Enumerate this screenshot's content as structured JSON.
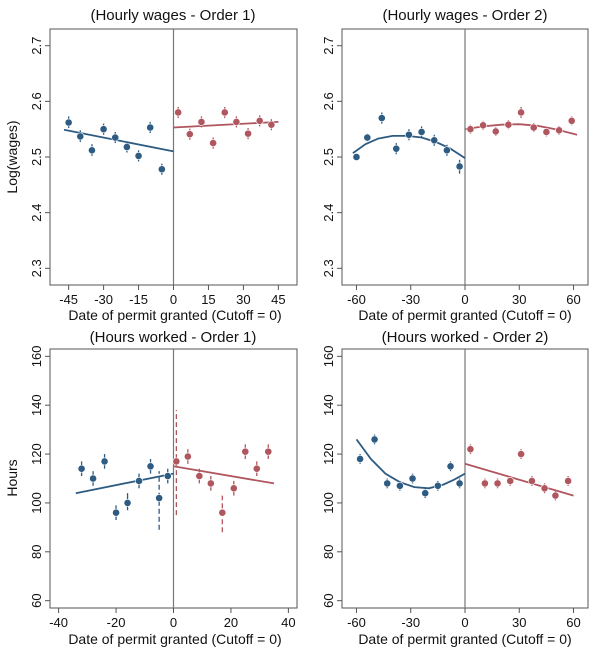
{
  "colors": {
    "left": "#2e5b82",
    "right": "#b0565f",
    "cutoff": "#777777",
    "axis": "#555555"
  },
  "chart_data": [
    {
      "type": "scatter",
      "title": "(Hourly wages - Order 1)",
      "xlabel": "Date of permit granted (Cutoff = 0)",
      "ylabel": "Log(wages)",
      "xlim": [
        -53,
        53
      ],
      "ylim": [
        2.27,
        2.73
      ],
      "xticks": [
        -45,
        -30,
        -15,
        0,
        15,
        30,
        45
      ],
      "xtick_labels": [
        "-45",
        "-30",
        "-15",
        "0",
        "15",
        "30",
        "45"
      ],
      "yticks": [
        2.3,
        2.4,
        2.5,
        2.6,
        2.7
      ],
      "ytick_labels": [
        "2.3",
        "2.4",
        "2.5",
        "2.6",
        "2.7"
      ],
      "cutoff": 0,
      "series": [
        {
          "side": "left",
          "points": [
            {
              "x": -45,
              "y": 2.562,
              "ci": [
                2.552,
                2.573
              ]
            },
            {
              "x": -40,
              "y": 2.537,
              "ci": [
                2.527,
                2.548
              ]
            },
            {
              "x": -35,
              "y": 2.512,
              "ci": [
                2.502,
                2.523
              ]
            },
            {
              "x": -30,
              "y": 2.55,
              "ci": [
                2.54,
                2.56
              ]
            },
            {
              "x": -25,
              "y": 2.535,
              "ci": [
                2.525,
                2.545
              ]
            },
            {
              "x": -20,
              "y": 2.518,
              "ci": [
                2.508,
                2.528
              ]
            },
            {
              "x": -15,
              "y": 2.502,
              "ci": [
                2.492,
                2.512
              ]
            },
            {
              "x": -10,
              "y": 2.553,
              "ci": [
                2.543,
                2.563
              ]
            },
            {
              "x": -5,
              "y": 2.478,
              "ci": [
                2.468,
                2.488
              ]
            }
          ],
          "fit": [
            [
              -47,
              2.549
            ],
            [
              0,
              2.51
            ]
          ]
        },
        {
          "side": "right",
          "points": [
            {
              "x": 2,
              "y": 2.58,
              "ci": [
                2.57,
                2.59
              ]
            },
            {
              "x": 7,
              "y": 2.541,
              "ci": [
                2.531,
                2.551
              ]
            },
            {
              "x": 12,
              "y": 2.563,
              "ci": [
                2.553,
                2.573
              ]
            },
            {
              "x": 17,
              "y": 2.525,
              "ci": [
                2.515,
                2.535
              ]
            },
            {
              "x": 22,
              "y": 2.58,
              "ci": [
                2.57,
                2.59
              ]
            },
            {
              "x": 27,
              "y": 2.563,
              "ci": [
                2.553,
                2.573
              ]
            },
            {
              "x": 32,
              "y": 2.542,
              "ci": [
                2.532,
                2.552
              ]
            },
            {
              "x": 37,
              "y": 2.565,
              "ci": [
                2.555,
                2.575
              ]
            },
            {
              "x": 42,
              "y": 2.558,
              "ci": [
                2.548,
                2.568
              ]
            }
          ],
          "fit": [
            [
              0,
              2.553
            ],
            [
              45,
              2.563
            ]
          ]
        }
      ]
    },
    {
      "type": "scatter",
      "title": "(Hourly wages - Order 2)",
      "xlabel": "Date of permit granted (Cutoff = 0)",
      "ylabel": "",
      "xlim": [
        -68,
        68
      ],
      "ylim": [
        2.27,
        2.73
      ],
      "xticks": [
        -60,
        -30,
        0,
        30,
        60
      ],
      "xtick_labels": [
        "-60",
        "-30",
        "0",
        "30",
        "60"
      ],
      "yticks": [
        2.3,
        2.4,
        2.5,
        2.6,
        2.7
      ],
      "ytick_labels": [
        "2.3",
        "2.4",
        "2.5",
        "2.6",
        "2.7"
      ],
      "cutoff": 0,
      "series": [
        {
          "side": "left",
          "points": [
            {
              "x": -60,
              "y": 2.5,
              "ci": [
                2.495,
                2.505
              ]
            },
            {
              "x": -54,
              "y": 2.535,
              "ci": [
                2.528,
                2.542
              ]
            },
            {
              "x": -46,
              "y": 2.57,
              "ci": [
                2.56,
                2.58
              ]
            },
            {
              "x": -38,
              "y": 2.515,
              "ci": [
                2.505,
                2.525
              ]
            },
            {
              "x": -31,
              "y": 2.54,
              "ci": [
                2.53,
                2.55
              ]
            },
            {
              "x": -24,
              "y": 2.545,
              "ci": [
                2.535,
                2.555
              ]
            },
            {
              "x": -17,
              "y": 2.53,
              "ci": [
                2.52,
                2.54
              ]
            },
            {
              "x": -10,
              "y": 2.512,
              "ci": [
                2.502,
                2.522
              ]
            },
            {
              "x": -3,
              "y": 2.483,
              "ci": [
                2.47,
                2.495
              ]
            }
          ],
          "fit": [
            [
              -62,
              2.507
            ],
            [
              -55,
              2.523
            ],
            [
              -48,
              2.533
            ],
            [
              -40,
              2.538
            ],
            [
              -32,
              2.538
            ],
            [
              -24,
              2.535
            ],
            [
              -16,
              2.527
            ],
            [
              -8,
              2.515
            ],
            [
              0,
              2.498
            ]
          ]
        },
        {
          "side": "right",
          "points": [
            {
              "x": 3,
              "y": 2.55,
              "ci": [
                2.542,
                2.558
              ]
            },
            {
              "x": 10,
              "y": 2.557,
              "ci": [
                2.549,
                2.565
              ]
            },
            {
              "x": 17,
              "y": 2.546,
              "ci": [
                2.538,
                2.554
              ]
            },
            {
              "x": 24,
              "y": 2.558,
              "ci": [
                2.55,
                2.566
              ]
            },
            {
              "x": 31,
              "y": 2.58,
              "ci": [
                2.57,
                2.59
              ]
            },
            {
              "x": 38,
              "y": 2.553,
              "ci": [
                2.545,
                2.561
              ]
            },
            {
              "x": 45,
              "y": 2.545,
              "ci": [
                2.537,
                2.553
              ]
            },
            {
              "x": 52,
              "y": 2.548,
              "ci": [
                2.54,
                2.556
              ]
            },
            {
              "x": 59,
              "y": 2.565,
              "ci": [
                2.557,
                2.573
              ]
            }
          ],
          "fit": [
            [
              0,
              2.55
            ],
            [
              10,
              2.555
            ],
            [
              20,
              2.558
            ],
            [
              30,
              2.559
            ],
            [
              40,
              2.556
            ],
            [
              50,
              2.55
            ],
            [
              62,
              2.54
            ]
          ]
        }
      ]
    },
    {
      "type": "scatter",
      "title": "(Hours worked - Order 1)",
      "xlabel": "Date of permit granted (Cutoff = 0)",
      "ylabel": "Hours",
      "xlim": [
        -43,
        43
      ],
      "ylim": [
        57,
        163
      ],
      "xticks": [
        -40,
        -20,
        0,
        20,
        40
      ],
      "xtick_labels": [
        "-40",
        "-20",
        "0",
        "20",
        "40"
      ],
      "yticks": [
        60,
        80,
        100,
        120,
        140,
        160
      ],
      "ytick_labels": [
        "60",
        "80",
        "100",
        "120",
        "140",
        "160"
      ],
      "cutoff": 0,
      "series": [
        {
          "side": "left",
          "points": [
            {
              "x": -32,
              "y": 114,
              "ci": [
                111,
                117
              ]
            },
            {
              "x": -28,
              "y": 110,
              "ci": [
                107,
                113
              ]
            },
            {
              "x": -24,
              "y": 117,
              "ci": [
                114,
                120
              ]
            },
            {
              "x": -20,
              "y": 96,
              "ci": [
                93,
                99
              ]
            },
            {
              "x": -16,
              "y": 100,
              "ci": [
                97,
                104
              ]
            },
            {
              "x": -12,
              "y": 109,
              "ci": [
                106,
                112
              ]
            },
            {
              "x": -8,
              "y": 115,
              "ci": [
                112,
                118
              ]
            },
            {
              "x": -5,
              "y": 102,
              "ci": [
                89,
                113
              ],
              "dashed": true
            },
            {
              "x": -2,
              "y": 111,
              "ci": [
                108,
                114
              ]
            }
          ],
          "fit": [
            [
              -34,
              104
            ],
            [
              0,
              112
            ]
          ]
        },
        {
          "side": "right",
          "points": [
            {
              "x": 1,
              "y": 117,
              "ci": [
                95,
                138
              ],
              "dashed": true
            },
            {
              "x": 5,
              "y": 119,
              "ci": [
                116,
                122
              ]
            },
            {
              "x": 9,
              "y": 111,
              "ci": [
                108,
                114
              ]
            },
            {
              "x": 13,
              "y": 108,
              "ci": [
                105,
                111
              ]
            },
            {
              "x": 17,
              "y": 96,
              "ci": [
                88,
                103
              ],
              "dashed": true
            },
            {
              "x": 21,
              "y": 106,
              "ci": [
                103,
                109
              ]
            },
            {
              "x": 25,
              "y": 121,
              "ci": [
                118,
                124
              ]
            },
            {
              "x": 29,
              "y": 114,
              "ci": [
                111,
                117
              ]
            },
            {
              "x": 33,
              "y": 121,
              "ci": [
                118,
                124
              ]
            }
          ],
          "fit": [
            [
              0,
              115
            ],
            [
              35,
              108
            ]
          ]
        }
      ]
    },
    {
      "type": "scatter",
      "title": "(Hours worked - Order 2)",
      "xlabel": "Date of permit granted (Cutoff = 0)",
      "ylabel": "",
      "xlim": [
        -68,
        68
      ],
      "ylim": [
        57,
        163
      ],
      "xticks": [
        -60,
        -30,
        0,
        30,
        60
      ],
      "xtick_labels": [
        "-60",
        "-30",
        "0",
        "30",
        "60"
      ],
      "yticks": [
        60,
        80,
        100,
        120,
        140,
        160
      ],
      "ytick_labels": [
        "60",
        "80",
        "100",
        "120",
        "140",
        "160"
      ],
      "cutoff": 0,
      "series": [
        {
          "side": "left",
          "points": [
            {
              "x": -58,
              "y": 118,
              "ci": [
                116,
                120
              ]
            },
            {
              "x": -50,
              "y": 126,
              "ci": [
                124,
                128
              ]
            },
            {
              "x": -43,
              "y": 108,
              "ci": [
                106,
                110
              ]
            },
            {
              "x": -36,
              "y": 107,
              "ci": [
                105,
                109
              ]
            },
            {
              "x": -29,
              "y": 110,
              "ci": [
                108,
                112
              ]
            },
            {
              "x": -22,
              "y": 104,
              "ci": [
                102,
                106
              ]
            },
            {
              "x": -15,
              "y": 107,
              "ci": [
                105,
                109
              ]
            },
            {
              "x": -8,
              "y": 115,
              "ci": [
                113,
                117
              ]
            },
            {
              "x": -3,
              "y": 108,
              "ci": [
                106,
                110
              ]
            }
          ],
          "fit": [
            [
              -60,
              126
            ],
            [
              -52,
              118
            ],
            [
              -44,
              112
            ],
            [
              -36,
              108.5
            ],
            [
              -28,
              106.5
            ],
            [
              -20,
              106
            ],
            [
              -12,
              107.5
            ],
            [
              -6,
              109.5
            ],
            [
              0,
              112
            ]
          ]
        },
        {
          "side": "right",
          "points": [
            {
              "x": 3,
              "y": 122,
              "ci": [
                120,
                124
              ]
            },
            {
              "x": 11,
              "y": 108,
              "ci": [
                106,
                110
              ]
            },
            {
              "x": 18,
              "y": 108,
              "ci": [
                106,
                110
              ]
            },
            {
              "x": 25,
              "y": 109,
              "ci": [
                107,
                111
              ]
            },
            {
              "x": 31,
              "y": 120,
              "ci": [
                118,
                122
              ]
            },
            {
              "x": 37,
              "y": 109,
              "ci": [
                107,
                111
              ]
            },
            {
              "x": 44,
              "y": 106,
              "ci": [
                104,
                108
              ]
            },
            {
              "x": 50,
              "y": 103,
              "ci": [
                101,
                105
              ]
            },
            {
              "x": 57,
              "y": 109,
              "ci": [
                107,
                111
              ]
            }
          ],
          "fit": [
            [
              0,
              116
            ],
            [
              60,
              103
            ]
          ]
        }
      ]
    }
  ]
}
